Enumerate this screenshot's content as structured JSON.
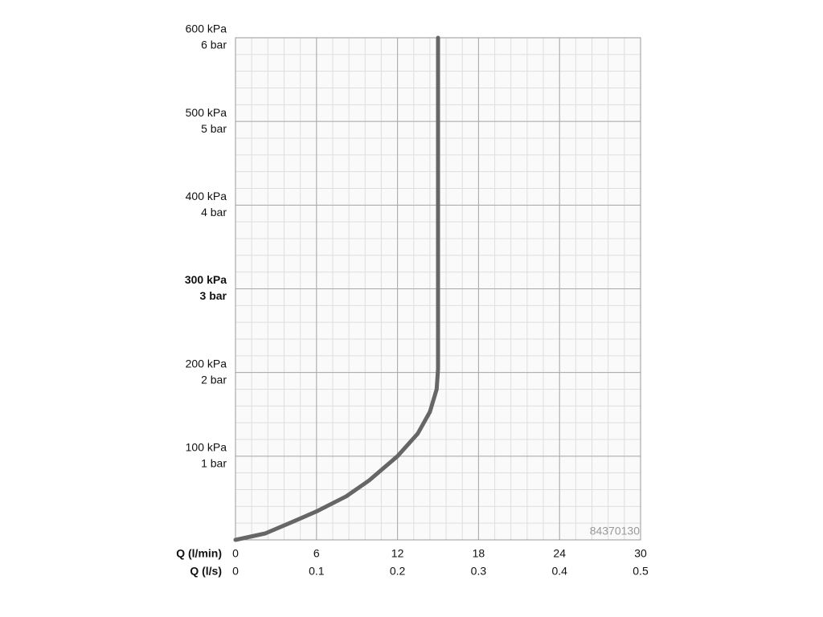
{
  "chart_data": {
    "type": "line",
    "x": [
      0,
      2.2,
      4.0,
      6,
      8.2,
      9.9,
      12,
      13.5,
      14.4,
      14.9,
      15.0,
      15.0
    ],
    "values": [
      0,
      7.7,
      20,
      34,
      52,
      71,
      100,
      127,
      153,
      180,
      204,
      600
    ],
    "color": "#666666",
    "xlabel": "Q (l/min)",
    "x2label": "Q (l/s)",
    "xlim": [
      0,
      30
    ],
    "xticks": [
      0,
      6,
      12,
      18,
      24,
      30
    ],
    "x2lim": [
      0,
      0.5
    ],
    "x2ticks": [
      0,
      0.1,
      0.2,
      0.3,
      0.4,
      0.5
    ],
    "ylim": [
      0,
      600
    ],
    "yticks": [
      {
        "value": 100,
        "label": "100 kPa"
      },
      {
        "value": 200,
        "label": "200 kPa"
      },
      {
        "value": 300,
        "label": "300 kPa"
      },
      {
        "value": 400,
        "label": "400 kPa"
      },
      {
        "value": 500,
        "label": "500 kPa"
      },
      {
        "value": 600,
        "label": "600 kPa"
      }
    ],
    "y2lim": [
      0,
      6
    ],
    "y2ticks": [
      {
        "value": 1,
        "label": "1 bar"
      },
      {
        "value": 2,
        "label": "2 bar"
      },
      {
        "value": 3,
        "label": "3 bar"
      },
      {
        "value": 4,
        "label": "4 bar"
      },
      {
        "value": 5,
        "label": "5 bar"
      },
      {
        "value": 6,
        "label": "6 bar"
      }
    ],
    "emphasized_ytick": 300,
    "grid": true,
    "minor_divisions": 5,
    "annotation": "84370130"
  }
}
